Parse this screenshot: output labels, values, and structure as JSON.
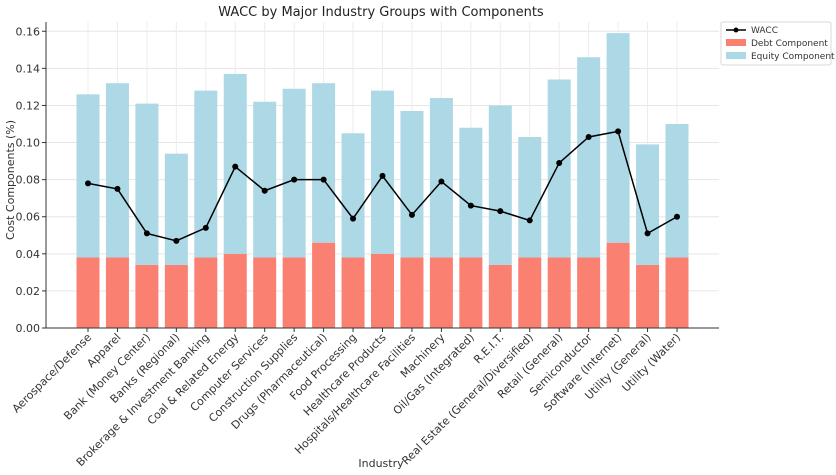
{
  "chart_data": {
    "type": "bar",
    "stacked": true,
    "title": "WACC by Major Industry Groups with Components",
    "xlabel": "Industry",
    "ylabel": "Cost Components (%)",
    "ylim": [
      0,
      0.165
    ],
    "yticks": [
      0.0,
      0.02,
      0.04,
      0.06,
      0.08,
      0.1,
      0.12,
      0.14,
      0.16
    ],
    "ytick_labels": [
      "0.00",
      "0.02",
      "0.04",
      "0.06",
      "0.08",
      "0.10",
      "0.12",
      "0.14",
      "0.16"
    ],
    "grid": true,
    "legend_position": "top-right",
    "categories": [
      "Aerospace/Defense",
      "Apparel",
      "Bank (Money Center)",
      "Banks (Regional)",
      "Brokerage & Investment Banking",
      "Coal & Related Energy",
      "Computer Services",
      "Construction Supplies",
      "Drugs (Pharmaceutical)",
      "Food Processing",
      "Healthcare Products",
      "Hospitals/Healthcare Facilities",
      "Machinery",
      "Oil/Gas (Integrated)",
      "R.E.I.T.",
      "Real Estate (General/Diversified)",
      "Retail (General)",
      "Semiconductor",
      "Software (Internet)",
      "Utility (General)",
      "Utility (Water)"
    ],
    "series": [
      {
        "name": "Debt Component",
        "kind": "bar",
        "color": "#fa8072",
        "values": [
          0.038,
          0.038,
          0.034,
          0.034,
          0.038,
          0.04,
          0.038,
          0.038,
          0.046,
          0.038,
          0.04,
          0.038,
          0.038,
          0.038,
          0.034,
          0.038,
          0.038,
          0.038,
          0.046,
          0.034,
          0.038
        ]
      },
      {
        "name": "Equity Component",
        "kind": "bar",
        "color": "#add8e6",
        "values": [
          0.088,
          0.094,
          0.087,
          0.06,
          0.09,
          0.097,
          0.084,
          0.091,
          0.086,
          0.067,
          0.088,
          0.079,
          0.086,
          0.07,
          0.086,
          0.065,
          0.096,
          0.108,
          0.113,
          0.065,
          0.072
        ]
      },
      {
        "name": "WACC",
        "kind": "line",
        "color": "#000000",
        "marker": "circle",
        "values": [
          0.078,
          0.075,
          0.051,
          0.047,
          0.054,
          0.087,
          0.074,
          0.08,
          0.08,
          0.059,
          0.082,
          0.061,
          0.079,
          0.066,
          0.063,
          0.058,
          0.089,
          0.103,
          0.106,
          0.051,
          0.06
        ]
      }
    ],
    "legend": [
      "WACC",
      "Debt Component",
      "Equity Component"
    ]
  }
}
